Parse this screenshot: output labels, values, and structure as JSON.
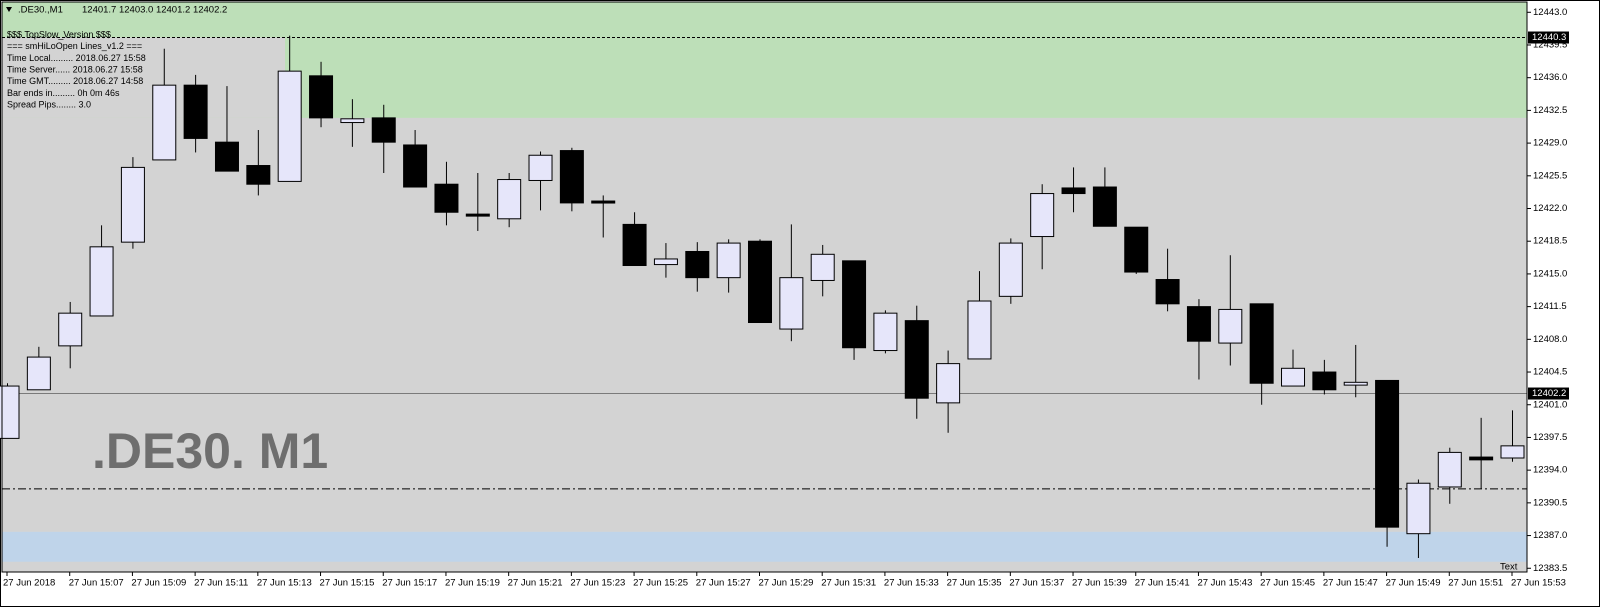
{
  "chart_data": {
    "type": "candlestick",
    "title": ".DE30. M1",
    "header_symbol": ".DE30.,M1",
    "header_quote": "12401.7 12403.0 12401.2 12402.2",
    "info_lines": [
      "$$$ TopSlow_Version $$$",
      "=== smHiLoOpen Lines_v1.2 ===",
      "Time Local......... 2018.06.27 15:58",
      "Time Server...... 2018.06.27 15:58",
      "Time GMT......... 2018.06.27 14:58",
      "Bar ends in......... 0h 0m 46s",
      "Spread Pips........ 3.0"
    ],
    "corner_text": "Text",
    "categories": [
      "27 Jun 2018",
      null,
      "27 Jun 15:07",
      null,
      "27 Jun 15:09",
      null,
      "27 Jun 15:11",
      null,
      "27 Jun 15:13",
      null,
      "27 Jun 15:15",
      null,
      "27 Jun 15:17",
      null,
      "27 Jun 15:19",
      null,
      "27 Jun 15:21",
      null,
      "27 Jun 15:23",
      null,
      "27 Jun 15:25",
      null,
      "27 Jun 15:27",
      null,
      "27 Jun 15:29",
      null,
      "27 Jun 15:31",
      null,
      "27 Jun 15:33",
      null,
      "27 Jun 15:35",
      null,
      "27 Jun 15:37",
      null,
      "27 Jun 15:39",
      null,
      "27 Jun 15:41",
      null,
      "27 Jun 15:43",
      null,
      "27 Jun 15:45",
      null,
      "27 Jun 15:47",
      null,
      "27 Jun 15:49",
      null,
      "27 Jun 15:51",
      null,
      "27 Jun 15:53"
    ],
    "open": [
      12397.4,
      12402.6,
      12407.3,
      12410.5,
      12418.4,
      12427.2,
      12435.2,
      12429.1,
      12426.6,
      12424.9,
      12436.2,
      12431.2,
      12431.7,
      12428.8,
      12424.6,
      12421.4,
      12420.9,
      12425.0,
      12428.2,
      12422.8,
      12420.3,
      12416.0,
      12417.4,
      12414.6,
      12418.5,
      12409.1,
      12414.3,
      12416.4,
      12406.8,
      12410.0,
      12401.2,
      12405.9,
      12412.6,
      12419.0,
      12424.2,
      12424.3,
      12420.0,
      12414.4,
      12411.5,
      12407.6,
      12411.8,
      12403.0,
      12404.5,
      12403.1,
      12403.6,
      12387.2,
      12392.2,
      12395.4,
      12395.3
    ],
    "high": [
      12403.3,
      12407.2,
      12412.0,
      12420.2,
      12427.5,
      12439.1,
      12436.3,
      12435.1,
      12430.4,
      12440.5,
      12437.7,
      12433.7,
      12433.1,
      12430.4,
      12427.0,
      12425.8,
      12425.8,
      12428.1,
      12428.5,
      12423.4,
      12421.6,
      12418.3,
      12418.4,
      12418.7,
      12418.7,
      12420.3,
      12418.1,
      12416.4,
      12411.1,
      12411.6,
      12406.8,
      12415.3,
      12418.8,
      12424.6,
      12426.4,
      12426.4,
      12420.0,
      12417.7,
      12412.3,
      12417.0,
      12411.8,
      12406.9,
      12405.8,
      12407.4,
      12403.6,
      12393.0,
      12396.4,
      12399.6,
      12400.4
    ],
    "low": [
      12397.4,
      12402.6,
      12404.9,
      12410.5,
      12417.7,
      12427.2,
      12428.0,
      12426.0,
      12423.4,
      12424.9,
      12430.7,
      12428.6,
      12425.8,
      12424.3,
      12420.2,
      12419.6,
      12420.0,
      12421.8,
      12421.7,
      12418.9,
      12415.9,
      12414.6,
      12413.1,
      12413.0,
      12409.8,
      12407.8,
      12412.6,
      12405.8,
      12406.5,
      12399.5,
      12398.0,
      12405.9,
      12411.8,
      12415.5,
      12421.6,
      12420.1,
      12415.0,
      12411.0,
      12403.7,
      12405.2,
      12401.0,
      12403.0,
      12402.1,
      12401.8,
      12385.8,
      12384.6,
      12390.4,
      12392.0,
      12394.9
    ],
    "close": [
      12403.0,
      12406.1,
      12410.8,
      12417.9,
      12426.4,
      12435.2,
      12429.5,
      12426.0,
      12424.6,
      12436.7,
      12431.7,
      12431.6,
      12429.1,
      12424.3,
      12421.6,
      12421.2,
      12425.1,
      12427.7,
      12422.6,
      12422.6,
      12415.9,
      12416.6,
      12414.6,
      12418.3,
      12409.8,
      12414.6,
      12417.1,
      12407.1,
      12410.8,
      12401.7,
      12405.4,
      12412.1,
      12418.3,
      12423.6,
      12423.6,
      12420.1,
      12415.2,
      12411.8,
      12407.8,
      12411.2,
      12403.3,
      12404.9,
      12402.6,
      12403.4,
      12387.9,
      12392.6,
      12395.9,
      12395.1,
      12396.6
    ],
    "up_color": "#e6e6fa",
    "down_color": "#000000",
    "background": "#d3d3d3",
    "ylim": [
      12383.1,
      12444.1
    ],
    "yticks": [
      {
        "value": 12443,
        "label": "12443.0"
      },
      12439.5,
      {
        "value": 12436,
        "label": "12436.0"
      },
      12432.5,
      {
        "value": 12429,
        "label": "12429.0"
      },
      12425.5,
      {
        "value": 12422,
        "label": "12422.0"
      },
      12418.5,
      {
        "value": 12415,
        "label": "12415.0"
      },
      12411.5,
      {
        "value": 12408,
        "label": "12408.0"
      },
      12404.5,
      {
        "value": 12401,
        "label": "12401.0"
      },
      12397.5,
      {
        "value": 12394,
        "label": "12394.0"
      },
      12390.5,
      {
        "value": 12387,
        "label": "12387.0"
      },
      12383.5
    ],
    "zones": [
      {
        "from": 12431.7,
        "to": 12444.1,
        "color": "#bddfb8"
      },
      {
        "from": 12384.2,
        "to": 12387.4,
        "color": "#bfd4ea"
      }
    ],
    "high_line": {
      "value": 12440.3,
      "label": "12440.3"
    },
    "price_line": {
      "value": 12402.2,
      "label": "12402.2"
    },
    "low_line": 12392.0
  }
}
